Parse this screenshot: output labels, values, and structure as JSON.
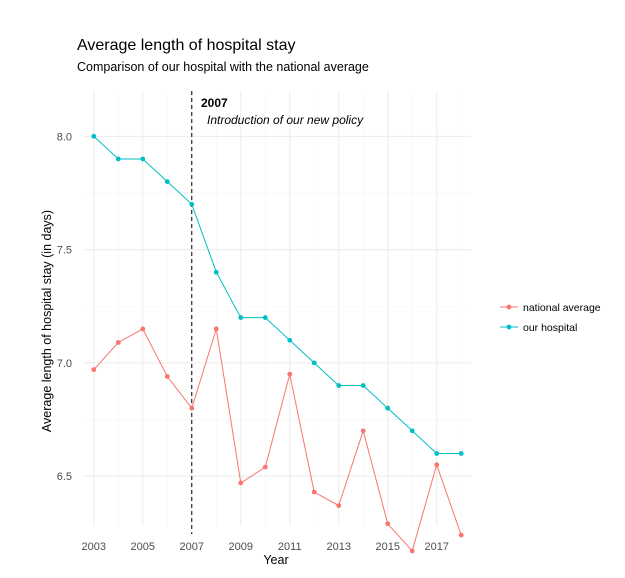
{
  "chart_data": {
    "type": "line",
    "title": "Average length of hospital stay",
    "subtitle": "Comparison of our hospital with the national average",
    "xlabel": "Year",
    "ylabel": "Average length of hospital stay (in days)",
    "xlim": [
      2002.6,
      2018.4
    ],
    "ylim": [
      6.28,
      8.2
    ],
    "x": [
      2003,
      2004,
      2005,
      2006,
      2007,
      2008,
      2009,
      2010,
      2011,
      2012,
      2013,
      2014,
      2015,
      2016,
      2017,
      2018
    ],
    "x_ticks": [
      2003,
      2005,
      2007,
      2009,
      2011,
      2013,
      2015,
      2017
    ],
    "x_tick_labels": [
      "2003",
      "2005",
      "2007",
      "2009",
      "2011",
      "2013",
      "2015",
      "2017"
    ],
    "y_ticks": [
      6.5,
      7.0,
      7.5,
      8.0
    ],
    "y_tick_labels": [
      "6.5",
      "7.0",
      "7.5",
      "8.0"
    ],
    "grid": true,
    "legend_position": "right",
    "series": [
      {
        "name": "national average",
        "color": "#F8766D",
        "values": [
          6.97,
          7.09,
          7.15,
          6.94,
          6.8,
          7.15,
          6.47,
          6.54,
          6.95,
          6.43,
          6.37,
          6.7,
          6.29,
          6.17,
          6.55,
          6.24
        ]
      },
      {
        "name": "our hospital",
        "color": "#00BFC4",
        "values": [
          8.0,
          7.9,
          7.9,
          7.8,
          7.7,
          7.4,
          7.2,
          7.2,
          7.1,
          7.0,
          6.9,
          6.9,
          6.8,
          6.7,
          6.6,
          6.6
        ]
      }
    ],
    "annotations": [
      {
        "type": "vline",
        "x": 2007,
        "style": "dashed"
      },
      {
        "bold_label": "2007",
        "italic_label": "Introduction of our new policy"
      }
    ]
  }
}
